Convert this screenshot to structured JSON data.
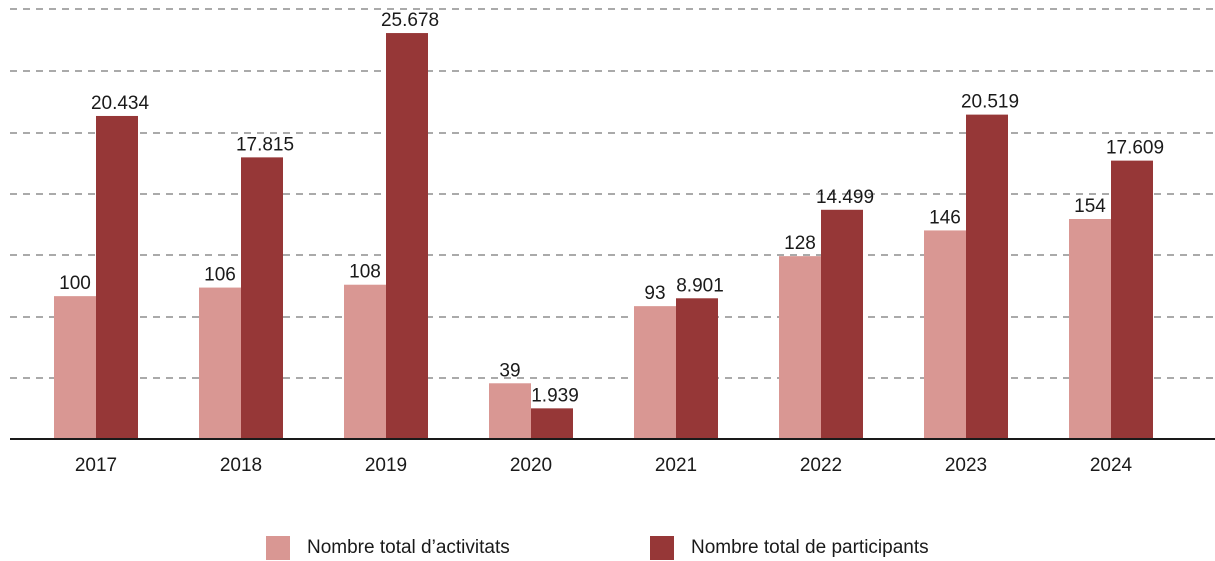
{
  "chart_data": {
    "type": "bar",
    "title": "",
    "xlabel": "",
    "ylabel": "",
    "categories": [
      "2017",
      "2018",
      "2019",
      "2020",
      "2021",
      "2022",
      "2023",
      "2024"
    ],
    "series": [
      {
        "name": "Nombre total d’activitats",
        "color": "#d99793",
        "values": [
          100,
          106,
          108,
          39,
          93,
          128,
          146,
          154
        ],
        "labels": [
          "100",
          "106",
          "108",
          "39",
          "93",
          "128",
          "146",
          "154"
        ],
        "axis": "left"
      },
      {
        "name": "Nombre total de participants",
        "color": "#963737",
        "values": [
          20434,
          17815,
          25678,
          1939,
          8901,
          14499,
          20519,
          17609
        ],
        "labels": [
          "20.434",
          "17.815",
          "25.678",
          "1.939",
          "8.901",
          "14.499",
          "20.519",
          "17.609"
        ],
        "axis": "right"
      }
    ],
    "grid": true,
    "grid_style": "dashed",
    "legend_position": "bottom"
  }
}
